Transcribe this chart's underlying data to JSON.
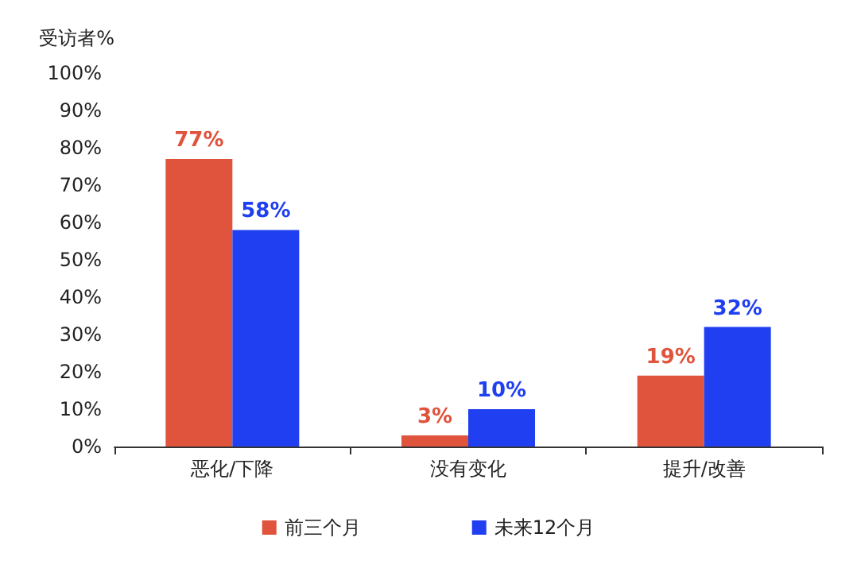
{
  "chart_data": {
    "type": "bar",
    "ylabel": "受访者%",
    "categories": [
      "恶化/下降",
      "没有变化",
      "提升/改善"
    ],
    "series": [
      {
        "name": "前三个月",
        "color": "#e0533c",
        "values": [
          77,
          3,
          19
        ],
        "value_labels": [
          "77%",
          "3%",
          "19%"
        ]
      },
      {
        "name": "未来12个月",
        "color": "#1f3ff0",
        "values": [
          58,
          10,
          32
        ],
        "value_labels": [
          "58%",
          "10%",
          "32%"
        ]
      }
    ],
    "ylim": [
      0,
      100
    ],
    "yticks": [
      {
        "value": 0,
        "label": "0%"
      },
      {
        "value": 10,
        "label": "10%"
      },
      {
        "value": 20,
        "label": "20%"
      },
      {
        "value": 30,
        "label": "30%"
      },
      {
        "value": 40,
        "label": "40%"
      },
      {
        "value": 50,
        "label": "50%"
      },
      {
        "value": 60,
        "label": "60%"
      },
      {
        "value": 70,
        "label": "70%"
      },
      {
        "value": 80,
        "label": "80%"
      },
      {
        "value": 90,
        "label": "90%"
      },
      {
        "value": 100,
        "label": "100%"
      }
    ],
    "grid": false,
    "legend": "bottom"
  }
}
